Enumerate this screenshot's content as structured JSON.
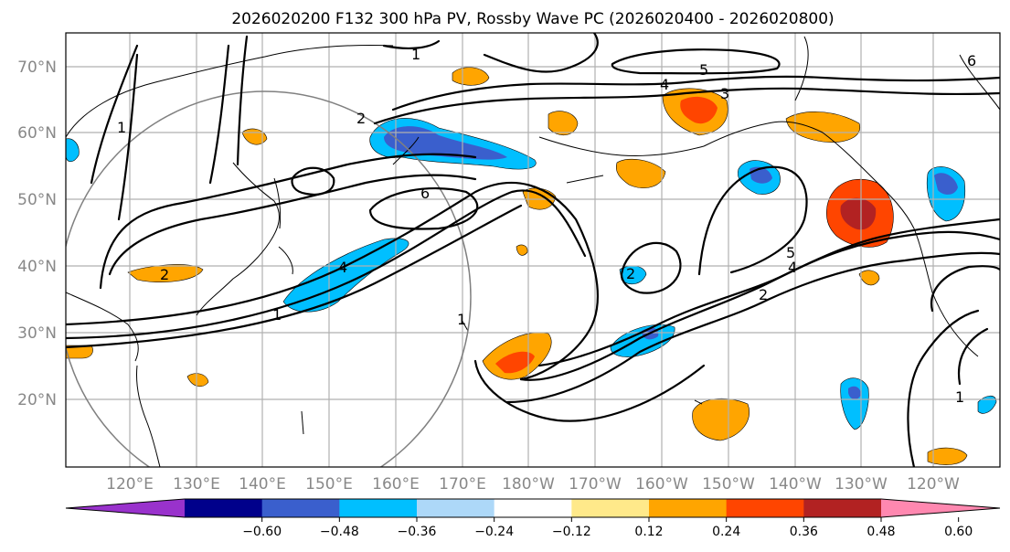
{
  "title": "2026020200 F132 300 hPa PV, Rossby Wave PC (2026020400 - 2026020800)",
  "lat_labels": [
    "70°N",
    "60°N",
    "50°N",
    "40°N",
    "30°N",
    "20°N"
  ],
  "lon_labels": [
    "120°E",
    "130°E",
    "140°E",
    "150°E",
    "160°E",
    "170°E",
    "180°W",
    "170°W",
    "160°W",
    "150°W",
    "140°W",
    "130°W",
    "120°W"
  ],
  "colorbar": {
    "ticks": [
      "−0.60",
      "−0.48",
      "−0.36",
      "−0.24",
      "−0.12",
      "0.12",
      "0.24",
      "0.36",
      "0.48",
      "0.60"
    ],
    "colors": [
      "#9932CC",
      "#00008B",
      "#3A5FCD",
      "#00BFFF",
      "#ADD8F8",
      "#FFFFFF",
      "#FFE98A",
      "#FFA500",
      "#FF4500",
      "#B22222",
      "#FF88B0"
    ]
  },
  "contour_labels": [
    "1",
    "2",
    "6",
    "4",
    "1",
    "2",
    "2",
    "5",
    "4",
    "2",
    "5",
    "3",
    "4",
    "1",
    "1",
    "1",
    "6"
  ]
}
